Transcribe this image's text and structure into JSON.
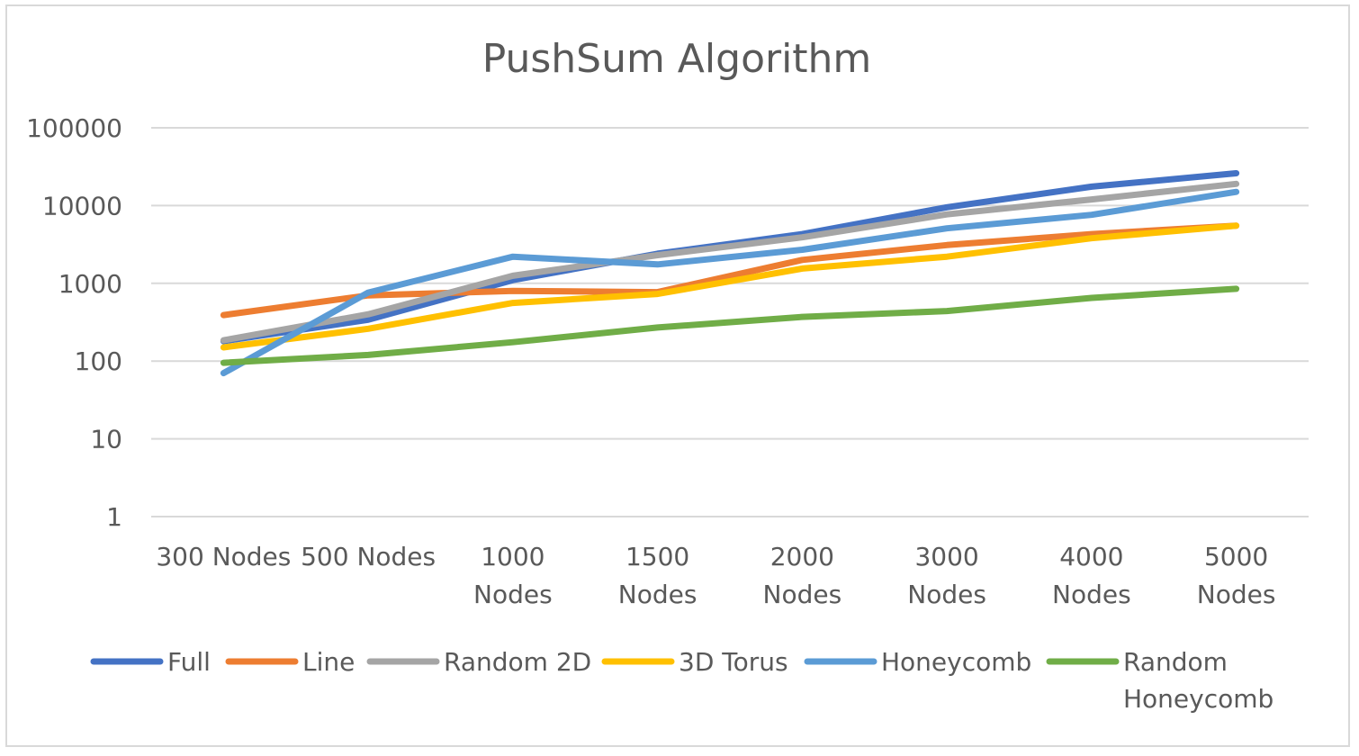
{
  "chart_data": {
    "type": "line",
    "title": "PushSum Algorithm",
    "xlabel": "",
    "ylabel": "",
    "y_scale": "log",
    "ylim": [
      1,
      100000
    ],
    "y_ticks": [
      "1",
      "10",
      "100",
      "1000",
      "10000",
      "100000"
    ],
    "grid": "horizontal",
    "legend_position": "bottom",
    "categories": [
      [
        "300 Nodes"
      ],
      [
        "500 Nodes"
      ],
      [
        "1000",
        "Nodes"
      ],
      [
        "1500",
        "Nodes"
      ],
      [
        "2000",
        "Nodes"
      ],
      [
        "3000",
        "Nodes"
      ],
      [
        "4000",
        "Nodes"
      ],
      [
        "5000",
        "Nodes"
      ]
    ],
    "series": [
      {
        "name": "Full",
        "legend_lines": [
          "Full"
        ],
        "color": "#4472c4",
        "values": [
          180,
          340,
          1100,
          2400,
          4300,
          9500,
          17500,
          26000
        ]
      },
      {
        "name": "Line",
        "legend_lines": [
          "Line"
        ],
        "color": "#ed7d31",
        "values": [
          390,
          700,
          800,
          770,
          2000,
          3100,
          4300,
          5500
        ]
      },
      {
        "name": "Random 2D",
        "legend_lines": [
          "Random 2D"
        ],
        "color": "#a5a5a5",
        "values": [
          185,
          400,
          1250,
          2300,
          3900,
          7700,
          12000,
          19000
        ]
      },
      {
        "name": "3D Torus",
        "legend_lines": [
          "3D Torus"
        ],
        "color": "#ffc000",
        "values": [
          150,
          260,
          560,
          730,
          1550,
          2200,
          3800,
          5500
        ]
      },
      {
        "name": "Honeycomb",
        "legend_lines": [
          "Honeycomb"
        ],
        "color": "#5b9bd5",
        "values": [
          70,
          760,
          2200,
          1750,
          2700,
          5100,
          7600,
          15000
        ]
      },
      {
        "name": "Random Honeycomb",
        "legend_lines": [
          "Random",
          "Honeycomb"
        ],
        "color": "#70ad47",
        "values": [
          95,
          120,
          175,
          270,
          370,
          440,
          650,
          850
        ]
      }
    ]
  }
}
